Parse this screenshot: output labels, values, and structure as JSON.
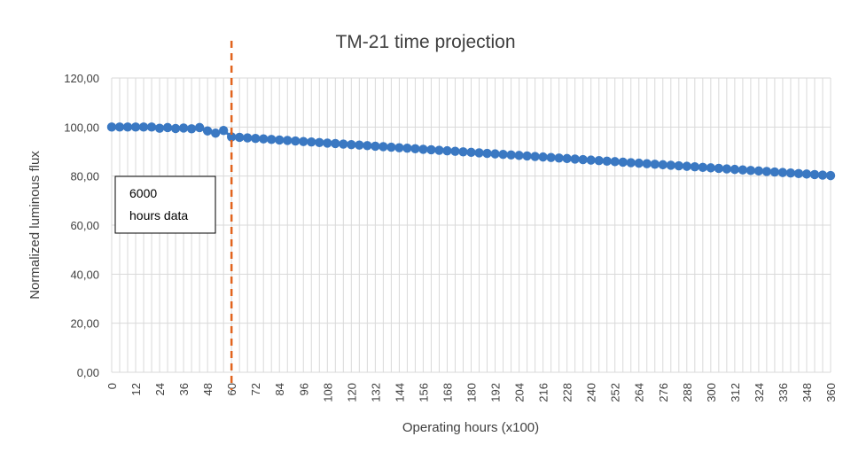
{
  "chart_data": {
    "type": "scatter",
    "title": "TM-21 time projection",
    "xlabel": "Operating hours (x100)",
    "ylabel": "Normalized luminous flux",
    "xlim": [
      0,
      360
    ],
    "ylim": [
      0,
      120
    ],
    "x_tick_labels": [
      "0",
      "12",
      "24",
      "36",
      "48",
      "60",
      "72",
      "84",
      "96",
      "108",
      "120",
      "132",
      "144",
      "156",
      "168",
      "180",
      "192",
      "204",
      "216",
      "228",
      "240",
      "252",
      "264",
      "276",
      "288",
      "300",
      "312",
      "324",
      "336",
      "348",
      "360"
    ],
    "y_tick_labels": [
      "0,00",
      "20,00",
      "40,00",
      "60,00",
      "80,00",
      "100,00",
      "120,00"
    ],
    "grid": true,
    "legend": "none",
    "series": [
      {
        "color": "#3a78c2",
        "measured": [
          [
            0,
            100.0
          ],
          [
            4,
            100.0
          ],
          [
            8,
            100.0
          ],
          [
            12,
            100.0
          ],
          [
            16,
            100.0
          ],
          [
            20,
            100.0
          ],
          [
            24,
            99.5
          ],
          [
            28,
            99.8
          ],
          [
            32,
            99.4
          ],
          [
            36,
            99.6
          ],
          [
            40,
            99.3
          ],
          [
            44,
            99.8
          ],
          [
            48,
            98.4
          ],
          [
            52,
            97.5
          ],
          [
            56,
            98.6
          ]
        ],
        "projection_start": [
          60,
          96.0
        ],
        "projection_end": [
          360,
          80.2
        ],
        "projection_step": 4
      }
    ],
    "annotations": [
      {
        "type": "vertical-line",
        "x": 60,
        "color": "#e2641e",
        "style": "dashed"
      },
      {
        "type": "text-box",
        "lines": [
          "6000",
          "hours data"
        ]
      }
    ]
  }
}
